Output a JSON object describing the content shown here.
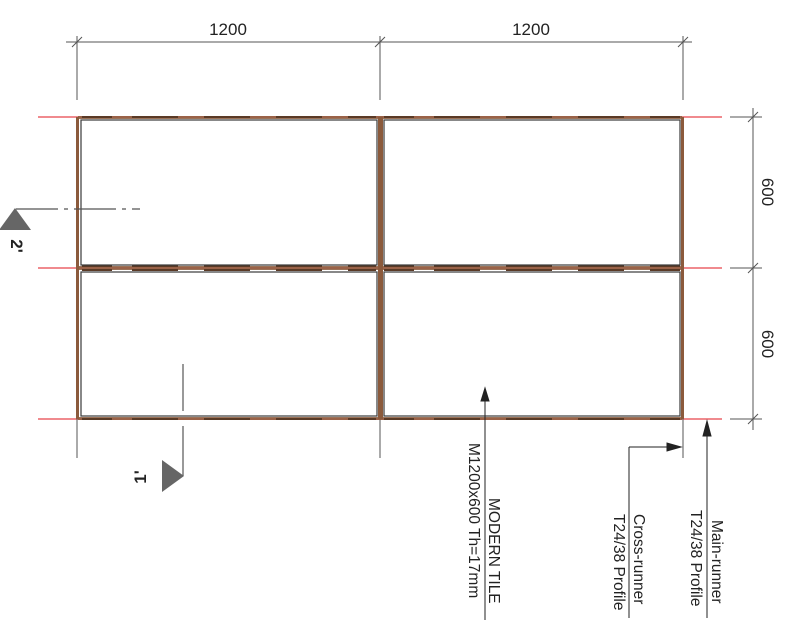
{
  "dimensions": {
    "top_left": "1200",
    "top_right": "1200",
    "right_top": "600",
    "right_bottom": "600"
  },
  "section_markers": {
    "section_1": "1'",
    "section_2": "2'"
  },
  "callouts": {
    "tile_line1": "MODERN TILE",
    "tile_line2": "M1200x600 Th=17mm",
    "cross_runner_line1": "Cross-runner",
    "cross_runner_line2": "T24/38 Profile",
    "main_runner_line1": "Main-runner",
    "main_runner_line2": "T24/38 Profile"
  },
  "colors": {
    "line": "#333333",
    "grid_red": "#e0141e",
    "runner_brown": "#8b5a3c"
  }
}
